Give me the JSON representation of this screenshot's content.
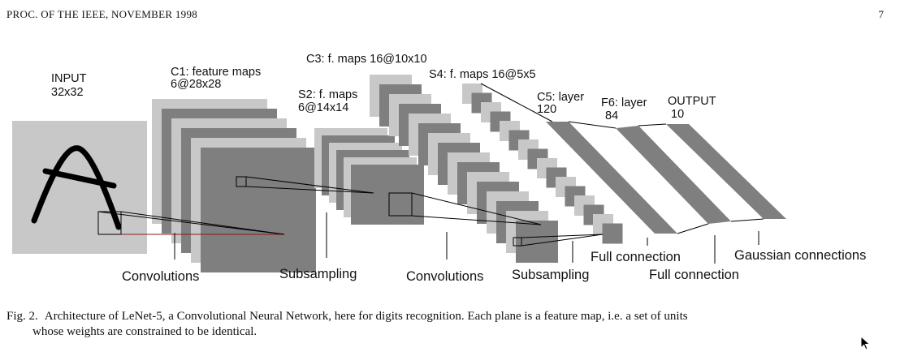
{
  "header": {
    "running_title": "PROC. OF THE IEEE, NOVEMBER 1998",
    "page_number": "7"
  },
  "figure": {
    "layers": {
      "input": {
        "name": "INPUT",
        "size": "32x32"
      },
      "c1": {
        "name": "C1: feature maps",
        "size": "6@28x28"
      },
      "s2": {
        "name": "S2: f. maps",
        "size": "6@14x14"
      },
      "c3": {
        "name": "C3: f. maps 16@10x10"
      },
      "s4": {
        "name": "S4: f. maps 16@5x5"
      },
      "c5": {
        "name": "C5: layer",
        "size": "120"
      },
      "f6": {
        "name": "F6: layer",
        "size": "84"
      },
      "output": {
        "name": "OUTPUT",
        "size": "10"
      }
    },
    "operations": {
      "convolutions_1": "Convolutions",
      "subsampling_1": "Subsampling",
      "convolutions_2": "Convolutions",
      "subsampling_2": "Subsampling",
      "full_connection_1": "Full connection",
      "full_connection_2": "Full connection",
      "gaussian": "Gaussian connections"
    },
    "colors": {
      "light_map": "#c8c8c8",
      "dark_map": "#7f7f7f",
      "line": "#000000",
      "receptive_red": "#8b1a1a"
    }
  },
  "caption": {
    "label": "Fig. 2.",
    "line1": "Architecture of LeNet-5, a Convolutional Neural Network, here for digits recognition. Each plane is a feature map, i.e. a set of units",
    "line2": "whose weights are constrained to be identical."
  }
}
